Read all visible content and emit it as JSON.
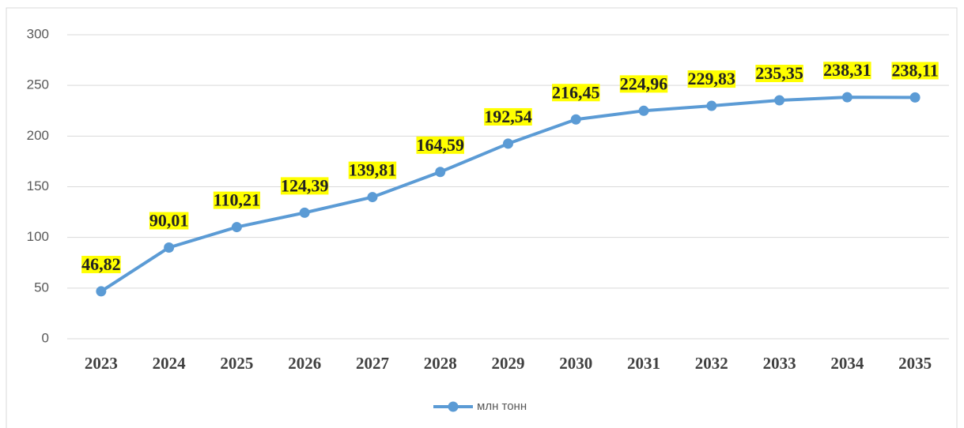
{
  "chart_data": {
    "type": "line",
    "categories": [
      "2023",
      "2024",
      "2025",
      "2026",
      "2027",
      "2028",
      "2029",
      "2030",
      "2031",
      "2032",
      "2033",
      "2034",
      "2035"
    ],
    "series": [
      {
        "name": "млн тонн",
        "color": "#5b9bd5",
        "values": [
          46.82,
          90.01,
          110.21,
          124.39,
          139.81,
          164.59,
          192.54,
          216.45,
          224.96,
          229.83,
          235.35,
          238.31,
          238.11
        ],
        "value_labels": [
          "46,82",
          "90,01",
          "110,21",
          "124,39",
          "139,81",
          "164,59",
          "192,54",
          "216,45",
          "224,96",
          "229,83",
          "235,35",
          "238,31",
          "238,11"
        ]
      }
    ],
    "ylim": [
      0,
      300
    ],
    "yticks": [
      0,
      50,
      100,
      150,
      200,
      250,
      300
    ],
    "grid": true,
    "label_background": "#ffff00",
    "legend": "bottom"
  }
}
